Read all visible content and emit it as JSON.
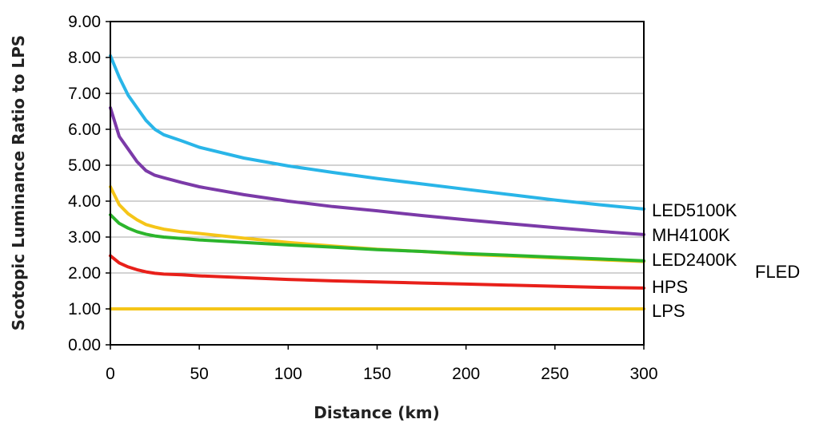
{
  "chart_data": {
    "type": "line",
    "title": "",
    "xlabel": "Distance (km)",
    "ylabel": "Scotopic Luminance Ratio to LPS",
    "xlim": [
      0,
      300
    ],
    "ylim": [
      0,
      9
    ],
    "x_ticks": [
      "0",
      "50",
      "100",
      "150",
      "200",
      "250",
      "300"
    ],
    "y_ticks": [
      "0.00",
      "1.00",
      "2.00",
      "3.00",
      "4.00",
      "5.00",
      "6.00",
      "7.00",
      "8.00",
      "9.00"
    ],
    "grid": "horizontal",
    "x": [
      0,
      5,
      10,
      15,
      20,
      25,
      30,
      40,
      50,
      75,
      100,
      125,
      150,
      175,
      200,
      225,
      250,
      275,
      300
    ],
    "series": [
      {
        "name": "LED5100K",
        "color": "#29b5e8",
        "values": [
          8.05,
          7.45,
          6.95,
          6.6,
          6.25,
          6.0,
          5.85,
          5.68,
          5.5,
          5.2,
          4.98,
          4.8,
          4.63,
          4.48,
          4.33,
          4.18,
          4.03,
          3.9,
          3.78
        ]
      },
      {
        "name": "MH4100K",
        "color": "#7b3aa8",
        "values": [
          6.6,
          5.8,
          5.45,
          5.1,
          4.85,
          4.72,
          4.65,
          4.52,
          4.4,
          4.18,
          4.0,
          3.85,
          3.73,
          3.6,
          3.48,
          3.37,
          3.26,
          3.16,
          3.07
        ]
      },
      {
        "name": "LED2400K",
        "color": "#f5c518",
        "values": [
          4.4,
          3.9,
          3.65,
          3.48,
          3.35,
          3.28,
          3.22,
          3.15,
          3.1,
          2.97,
          2.85,
          2.75,
          2.66,
          2.6,
          2.52,
          2.47,
          2.42,
          2.37,
          2.32
        ]
      },
      {
        "name": "FLED",
        "color": "#2cb52c",
        "values": [
          3.62,
          3.38,
          3.25,
          3.15,
          3.08,
          3.03,
          3.0,
          2.96,
          2.92,
          2.85,
          2.78,
          2.72,
          2.65,
          2.6,
          2.54,
          2.49,
          2.44,
          2.39,
          2.34
        ]
      },
      {
        "name": "HPS",
        "color": "#e8201a",
        "values": [
          2.48,
          2.28,
          2.17,
          2.09,
          2.03,
          1.99,
          1.97,
          1.95,
          1.92,
          1.87,
          1.82,
          1.78,
          1.75,
          1.72,
          1.69,
          1.66,
          1.63,
          1.6,
          1.58
        ]
      },
      {
        "name": "LPS",
        "color": "#f5c518",
        "values": [
          1.0,
          1.0,
          1.0,
          1.0,
          1.0,
          1.0,
          1.0,
          1.0,
          1.0,
          1.0,
          1.0,
          1.0,
          1.0,
          1.0,
          1.0,
          1.0,
          1.0,
          1.0,
          1.0
        ]
      }
    ],
    "series_labels": [
      {
        "text": "LED5100K",
        "series": "LED5100K"
      },
      {
        "text": "MH4100K",
        "series": "MH4100K"
      },
      {
        "text": "LED2400K",
        "series": "LED2400K"
      },
      {
        "text": "FLED",
        "series": "FLED"
      },
      {
        "text": "HPS",
        "series": "HPS"
      },
      {
        "text": "LPS",
        "series": "LPS"
      }
    ]
  }
}
